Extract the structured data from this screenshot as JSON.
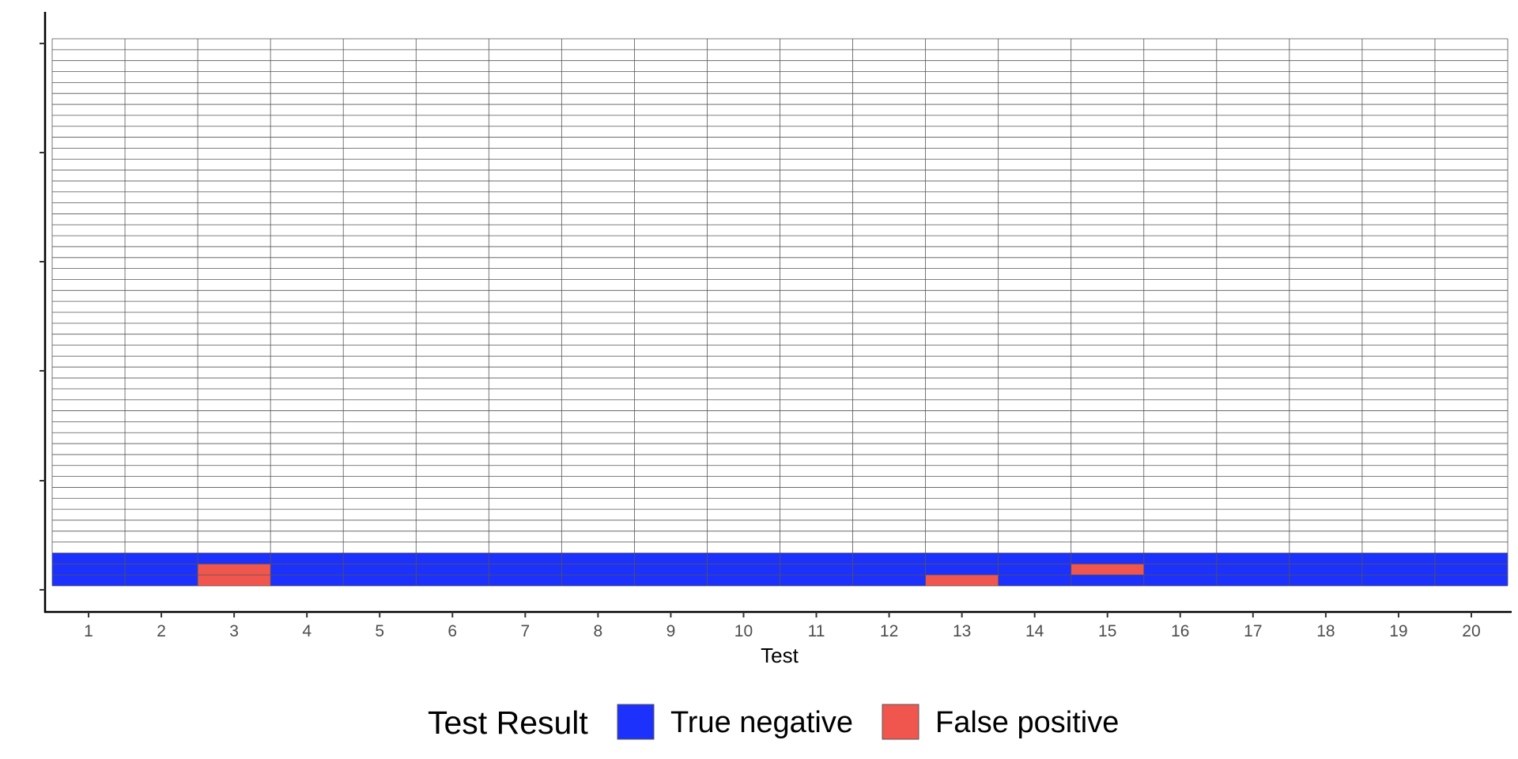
{
  "chart_data": {
    "type": "heatmap",
    "xlabel": "Test",
    "ylabel": "",
    "x_categories": [
      "1",
      "2",
      "3",
      "4",
      "5",
      "6",
      "7",
      "8",
      "9",
      "10",
      "11",
      "12",
      "13",
      "14",
      "15",
      "16",
      "17",
      "18",
      "19",
      "20"
    ],
    "rows_total": 50,
    "y_tick_labels": [],
    "grid": true,
    "legend": {
      "title": "Test Result",
      "position": "bottom",
      "items": [
        {
          "key": "true_negative",
          "label": "True negative",
          "color": "#1c31fb"
        },
        {
          "key": "false_positive",
          "label": "False positive",
          "color": "#f0564e"
        }
      ]
    },
    "filled_rows": [
      {
        "row": 1,
        "results": [
          "true_negative",
          "true_negative",
          "false_positive",
          "true_negative",
          "true_negative",
          "true_negative",
          "true_negative",
          "true_negative",
          "true_negative",
          "true_negative",
          "true_negative",
          "true_negative",
          "false_positive",
          "true_negative",
          "true_negative",
          "true_negative",
          "true_negative",
          "true_negative",
          "true_negative",
          "true_negative"
        ]
      },
      {
        "row": 2,
        "results": [
          "true_negative",
          "true_negative",
          "false_positive",
          "true_negative",
          "true_negative",
          "true_negative",
          "true_negative",
          "true_negative",
          "true_negative",
          "true_negative",
          "true_negative",
          "true_negative",
          "true_negative",
          "true_negative",
          "false_positive",
          "true_negative",
          "true_negative",
          "true_negative",
          "true_negative",
          "true_negative"
        ]
      },
      {
        "row": 3,
        "results": [
          "true_negative",
          "true_negative",
          "true_negative",
          "true_negative",
          "true_negative",
          "true_negative",
          "true_negative",
          "true_negative",
          "true_negative",
          "true_negative",
          "true_negative",
          "true_negative",
          "true_negative",
          "true_negative",
          "true_negative",
          "true_negative",
          "true_negative",
          "true_negative",
          "true_negative",
          "true_negative"
        ]
      }
    ]
  }
}
